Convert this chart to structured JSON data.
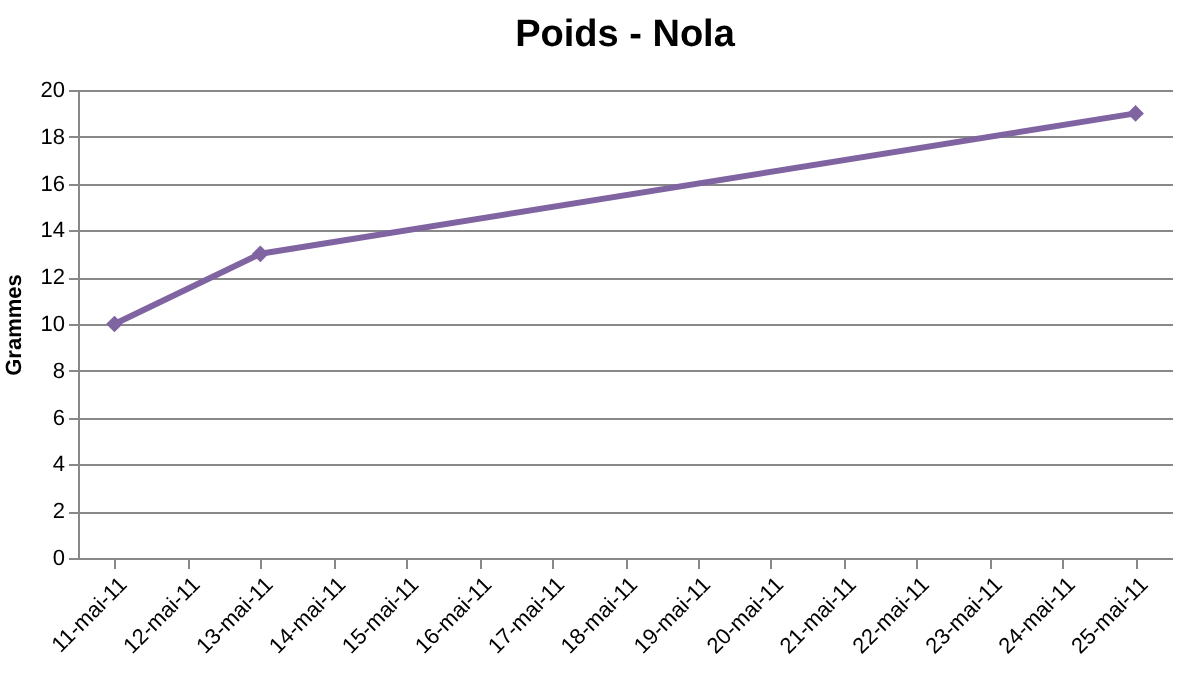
{
  "chart_data": {
    "type": "line",
    "title": "Poids - Nola",
    "ylabel": "Grammes",
    "x": [
      "--05-11",
      "--05-13",
      "--05-25"
    ],
    "series": [
      {
        "color": "#8064a2",
        "values": [
          10,
          13,
          19
        ]
      }
    ],
    "xlim": [
      "--05-10T12:00",
      "--05-25T12:00"
    ],
    "xticks": [
      {
        "value": "--05-11",
        "label": "11-mai-11"
      },
      {
        "value": "--05-12",
        "label": "12-mai-11"
      },
      {
        "value": "--05-13",
        "label": "13-mai-11"
      },
      {
        "value": "--05-14",
        "label": "14-mai-11"
      },
      {
        "value": "--05-15",
        "label": "15-mai-11"
      },
      {
        "value": "--05-16",
        "label": "16-mai-11"
      },
      {
        "value": "--05-17",
        "label": "17-mai-11"
      },
      {
        "value": "--05-18",
        "label": "18-mai-11"
      },
      {
        "value": "--05-19",
        "label": "19-mai-11"
      },
      {
        "value": "--05-20",
        "label": "20-mai-11"
      },
      {
        "value": "--05-21",
        "label": "21-mai-11"
      },
      {
        "value": "--05-22",
        "label": "22-mai-11"
      },
      {
        "value": "--05-23",
        "label": "23-mai-11"
      },
      {
        "value": "--05-24",
        "label": "24-mai-11"
      },
      {
        "value": "--05-25",
        "label": "25-mai-11"
      }
    ],
    "ylim": [
      0,
      20
    ],
    "yticks": [
      0,
      2,
      4,
      6,
      8,
      10,
      12,
      14,
      16,
      18,
      20
    ],
    "grid": "y",
    "marker": "diamond",
    "line_style": "solid"
  }
}
